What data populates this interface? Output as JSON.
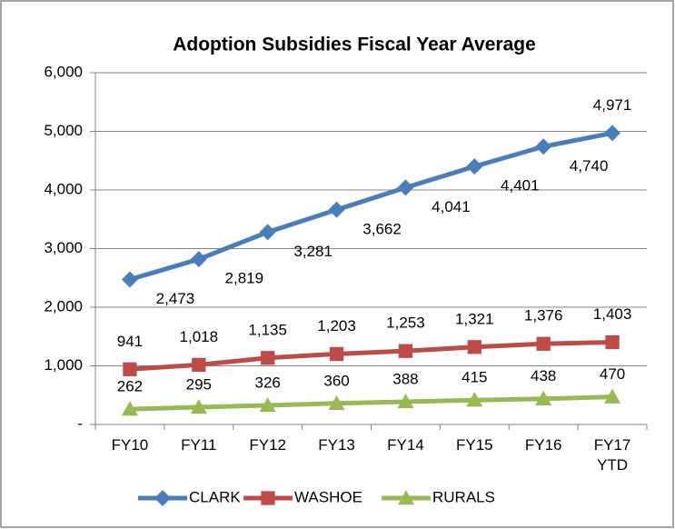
{
  "chart_data": {
    "type": "line",
    "title": "Adoption Subsidies Fiscal Year Average",
    "categories": [
      "FY10",
      "FY11",
      "FY12",
      "FY13",
      "FY14",
      "FY15",
      "FY16",
      "FY17 YTD"
    ],
    "series": [
      {
        "name": "CLARK",
        "color": "#4a7ebb",
        "marker": "diamond",
        "values": [
          2473,
          2819,
          3281,
          3662,
          4041,
          4401,
          4740,
          4971
        ],
        "value_labels": [
          "2,473",
          "2,819",
          "3,281",
          "3,662",
          "4,041",
          "4,401",
          "4,740",
          "4,971"
        ]
      },
      {
        "name": "WASHOE",
        "color": "#be4b48",
        "marker": "square",
        "values": [
          941,
          1018,
          1135,
          1203,
          1253,
          1321,
          1376,
          1403
        ],
        "value_labels": [
          "941",
          "1,018",
          "1,135",
          "1,203",
          "1,253",
          "1,321",
          "1,376",
          "1,403"
        ]
      },
      {
        "name": "RURALS",
        "color": "#98b954",
        "marker": "triangle",
        "values": [
          262,
          295,
          326,
          360,
          388,
          415,
          438,
          470
        ]
      }
    ],
    "ylim": [
      0,
      6000
    ],
    "yticks": [
      {
        "value": 0,
        "label": "-"
      },
      {
        "value": 1000,
        "label": "1,000"
      },
      {
        "value": 2000,
        "label": "2,000"
      },
      {
        "value": 3000,
        "label": "3,000"
      },
      {
        "value": 4000,
        "label": "4,000"
      },
      {
        "value": 5000,
        "label": "5,000"
      },
      {
        "value": 6000,
        "label": "6,000"
      }
    ],
    "grid": true,
    "legend": "bottom"
  }
}
